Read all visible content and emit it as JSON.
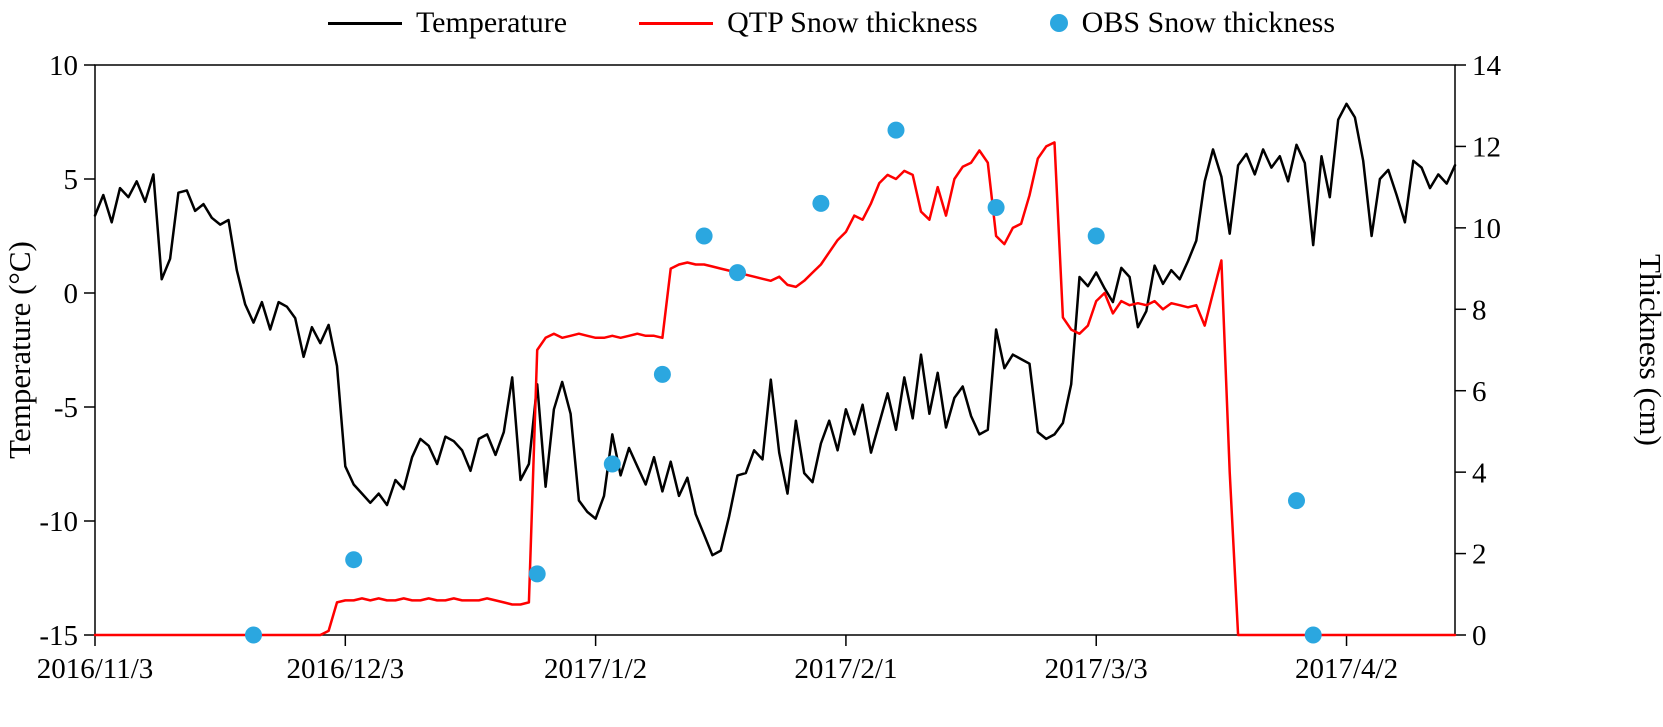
{
  "legend": {
    "items": [
      {
        "label": "Temperature",
        "type": "line",
        "color": "#000000"
      },
      {
        "label": "QTP Snow thickness",
        "type": "line",
        "color": "#FF0000"
      },
      {
        "label": "OBS Snow thickness",
        "type": "dot",
        "color": "#2BA7E0"
      }
    ]
  },
  "chart_data": {
    "type": "line",
    "title": "",
    "x_axis": {
      "tick_labels": [
        "2016/11/3",
        "2016/12/3",
        "2017/1/2",
        "2017/2/1",
        "2017/3/3",
        "2017/4/2"
      ],
      "tick_days": [
        0,
        30,
        60,
        90,
        120,
        150
      ],
      "domain_days": [
        0,
        163
      ]
    },
    "left_axis": {
      "label": "Temperature (°C)",
      "ticks": [
        10,
        5,
        0,
        -5,
        -10,
        -15
      ],
      "range": [
        -15,
        10
      ]
    },
    "right_axis": {
      "label": "Thickness (cm)",
      "ticks": [
        14,
        12,
        10,
        8,
        6,
        4,
        2,
        0
      ],
      "range": [
        0,
        14
      ]
    },
    "series": [
      {
        "name": "Temperature",
        "axis": "left",
        "color": "#000000",
        "day_start": 0,
        "day_step": 1,
        "values": [
          3.4,
          4.3,
          3.1,
          4.6,
          4.2,
          4.9,
          4.0,
          5.2,
          0.6,
          1.5,
          4.4,
          4.5,
          3.6,
          3.9,
          3.3,
          3.0,
          3.2,
          1.0,
          -0.5,
          -1.3,
          -0.4,
          -1.6,
          -0.4,
          -0.6,
          -1.1,
          -2.8,
          -1.5,
          -2.2,
          -1.4,
          -3.2,
          -7.6,
          -8.4,
          -8.8,
          -9.2,
          -8.8,
          -9.3,
          -8.2,
          -8.6,
          -7.2,
          -6.4,
          -6.7,
          -7.5,
          -6.3,
          -6.5,
          -6.9,
          -7.8,
          -6.4,
          -6.2,
          -7.1,
          -6.1,
          -3.7,
          -8.2,
          -7.5,
          -4.0,
          -8.5,
          -5.1,
          -3.9,
          -5.3,
          -9.1,
          -9.6,
          -9.9,
          -8.9,
          -6.2,
          -8.0,
          -6.8,
          -7.6,
          -8.4,
          -7.2,
          -8.7,
          -7.4,
          -8.9,
          -8.1,
          -9.7,
          -10.6,
          -11.5,
          -11.3,
          -9.8,
          -8.0,
          -7.9,
          -6.9,
          -7.3,
          -3.8,
          -7.0,
          -8.8,
          -5.6,
          -7.9,
          -8.3,
          -6.6,
          -5.6,
          -6.9,
          -5.1,
          -6.2,
          -4.9,
          -7.0,
          -5.7,
          -4.4,
          -6.0,
          -3.7,
          -5.5,
          -2.7,
          -5.3,
          -3.5,
          -5.9,
          -4.6,
          -4.1,
          -5.4,
          -6.2,
          -6.0,
          -1.6,
          -3.3,
          -2.7,
          -2.9,
          -3.1,
          -6.1,
          -6.4,
          -6.2,
          -5.7,
          -4.0,
          0.7,
          0.3,
          0.9,
          0.2,
          -0.4,
          1.1,
          0.7,
          -1.5,
          -0.8,
          1.2,
          0.4,
          1.0,
          0.6,
          1.4,
          2.3,
          4.9,
          6.3,
          5.1,
          2.6,
          5.6,
          6.1,
          5.2,
          6.3,
          5.5,
          6.0,
          4.9,
          6.5,
          5.7,
          2.1,
          6.0,
          4.2,
          7.6,
          8.3,
          7.7,
          5.8,
          2.5,
          5.0,
          5.4,
          4.3,
          3.1,
          5.8,
          5.5,
          4.6,
          5.2,
          4.8,
          5.6
        ]
      },
      {
        "name": "QTP Snow thickness",
        "axis": "right",
        "color": "#FF0000",
        "day_start": 0,
        "day_step": 1,
        "values": [
          0,
          0,
          0,
          0,
          0,
          0,
          0,
          0,
          0,
          0,
          0,
          0,
          0,
          0,
          0,
          0,
          0,
          0,
          0,
          0,
          0,
          0,
          0,
          0,
          0,
          0,
          0,
          0,
          0.1,
          0.8,
          0.85,
          0.85,
          0.9,
          0.85,
          0.9,
          0.85,
          0.85,
          0.9,
          0.85,
          0.85,
          0.9,
          0.85,
          0.85,
          0.9,
          0.85,
          0.85,
          0.85,
          0.9,
          0.85,
          0.8,
          0.75,
          0.75,
          0.8,
          7.0,
          7.3,
          7.4,
          7.3,
          7.35,
          7.4,
          7.35,
          7.3,
          7.3,
          7.35,
          7.3,
          7.35,
          7.4,
          7.35,
          7.35,
          7.3,
          9.0,
          9.1,
          9.15,
          9.1,
          9.1,
          9.05,
          9.0,
          8.95,
          8.9,
          8.85,
          8.8,
          8.75,
          8.7,
          8.8,
          8.6,
          8.55,
          8.7,
          8.9,
          9.1,
          9.4,
          9.7,
          9.9,
          10.3,
          10.2,
          10.6,
          11.1,
          11.3,
          11.2,
          11.4,
          11.3,
          10.4,
          10.2,
          11.0,
          10.3,
          11.2,
          11.5,
          11.6,
          11.9,
          11.6,
          9.8,
          9.6,
          10.0,
          10.1,
          10.8,
          11.7,
          12.0,
          12.1,
          7.8,
          7.5,
          7.4,
          7.6,
          8.2,
          8.4,
          7.9,
          8.2,
          8.1,
          8.15,
          8.1,
          8.2,
          8.0,
          8.15,
          8.1,
          8.05,
          8.1,
          7.6,
          8.4,
          9.2,
          4.0,
          0,
          0,
          0,
          0,
          0,
          0,
          0,
          0,
          0,
          0,
          0,
          0,
          0,
          0,
          0,
          0,
          0,
          0,
          0,
          0,
          0,
          0,
          0,
          0,
          0,
          0,
          0
        ]
      },
      {
        "name": "OBS Snow thickness",
        "axis": "right",
        "type": "scatter",
        "color": "#2BA7E0",
        "points": [
          [
            19,
            0
          ],
          [
            31,
            1.85
          ],
          [
            53,
            1.5
          ],
          [
            62,
            4.2
          ],
          [
            68,
            6.4
          ],
          [
            73,
            9.8
          ],
          [
            77,
            8.9
          ],
          [
            87,
            10.6
          ],
          [
            96,
            12.4
          ],
          [
            108,
            10.5
          ],
          [
            120,
            9.8
          ],
          [
            144,
            3.3
          ],
          [
            146,
            0
          ]
        ]
      }
    ]
  }
}
